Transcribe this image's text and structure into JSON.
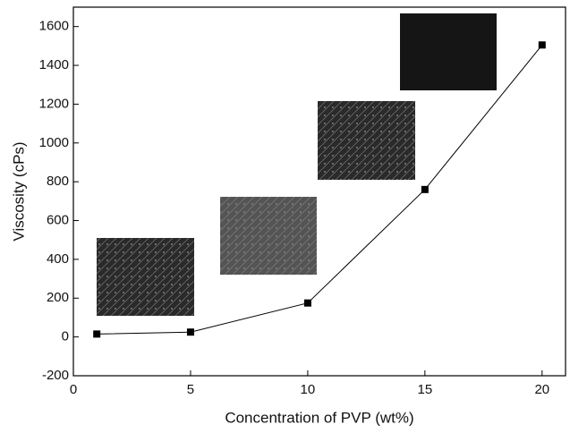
{
  "chart_data": {
    "type": "line",
    "x_label": "Concentration of PVP (wt%)",
    "y_label": "Viscosity (cPs)",
    "x": [
      1,
      5,
      10,
      15,
      20
    ],
    "series": [
      {
        "color": "#000000",
        "values": [
          15,
          25,
          175,
          760,
          1505
        ]
      }
    ],
    "xlim": [
      0,
      21
    ],
    "xticks": [
      0,
      5,
      10,
      15,
      20
    ],
    "ylim": [
      -200,
      1700
    ],
    "yticks": [
      -200,
      0,
      200,
      400,
      600,
      800,
      1000,
      1200,
      1400,
      1600
    ]
  }
}
